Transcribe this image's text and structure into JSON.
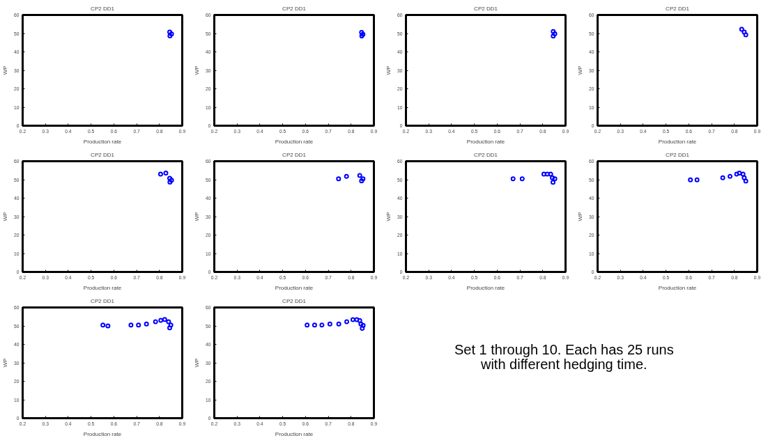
{
  "chart_data": [
    {
      "type": "scatter",
      "title": "CP2 DD1",
      "xlabel": "Production rate",
      "ylabel": "WP",
      "xlim": [
        0.2,
        0.9
      ],
      "ylim": [
        0,
        60
      ],
      "xticks": [
        0.2,
        0.3,
        0.4,
        0.5,
        0.6,
        0.7,
        0.8,
        0.9
      ],
      "yticks": [
        0,
        10,
        20,
        30,
        40,
        50,
        60
      ],
      "marker": "circle",
      "grid": false,
      "color": "#0000ff",
      "x": [
        0.845,
        0.853,
        0.846
      ],
      "values": [
        50.8,
        49.7,
        48.7
      ]
    },
    {
      "type": "scatter",
      "title": "CP2 DD1",
      "xlabel": "Production rate",
      "ylabel": "WP",
      "xlim": [
        0.2,
        0.9
      ],
      "ylim": [
        0,
        60
      ],
      "xticks": [
        0.2,
        0.3,
        0.4,
        0.5,
        0.6,
        0.7,
        0.8,
        0.9
      ],
      "yticks": [
        0,
        10,
        20,
        30,
        40,
        50,
        60
      ],
      "marker": "circle",
      "grid": false,
      "color": "#0000ff",
      "x": [
        0.846,
        0.852,
        0.847
      ],
      "values": [
        50.6,
        49.5,
        48.6
      ]
    },
    {
      "type": "scatter",
      "title": "CP2 DD1",
      "xlabel": "Production rate",
      "ylabel": "WP",
      "xlim": [
        0.2,
        0.9
      ],
      "ylim": [
        0,
        60
      ],
      "xticks": [
        0.2,
        0.3,
        0.4,
        0.5,
        0.6,
        0.7,
        0.8,
        0.9
      ],
      "yticks": [
        0,
        10,
        20,
        30,
        40,
        50,
        60
      ],
      "marker": "circle",
      "grid": false,
      "color": "#0000ff",
      "x": [
        0.846,
        0.853,
        0.846
      ],
      "values": [
        51,
        49.8,
        48.6
      ]
    },
    {
      "type": "scatter",
      "title": "CP2 DD1",
      "xlabel": "Production rate",
      "ylabel": "WP",
      "xlim": [
        0.2,
        0.9
      ],
      "ylim": [
        0,
        60
      ],
      "xticks": [
        0.2,
        0.3,
        0.4,
        0.5,
        0.6,
        0.7,
        0.8,
        0.9
      ],
      "yticks": [
        0,
        10,
        20,
        30,
        40,
        50,
        60
      ],
      "marker": "circle",
      "grid": false,
      "color": "#0000ff",
      "x": [
        0.832,
        0.843,
        0.85
      ],
      "values": [
        52.3,
        50.8,
        49.2
      ]
    },
    {
      "type": "scatter",
      "title": "CP2 DD1",
      "xlabel": "Production rate",
      "ylabel": "WP",
      "xlim": [
        0.2,
        0.9
      ],
      "ylim": [
        0,
        60
      ],
      "xticks": [
        0.2,
        0.3,
        0.4,
        0.5,
        0.6,
        0.7,
        0.8,
        0.9
      ],
      "yticks": [
        0,
        10,
        20,
        30,
        40,
        50,
        60
      ],
      "marker": "circle",
      "grid": false,
      "color": "#0000ff",
      "x": [
        0.805,
        0.828,
        0.845,
        0.853,
        0.846
      ],
      "values": [
        53,
        53.6,
        50.8,
        49.7,
        48.7
      ]
    },
    {
      "type": "scatter",
      "title": "CP2 DD1",
      "xlabel": "Production rate",
      "ylabel": "WP",
      "xlim": [
        0.2,
        0.9
      ],
      "ylim": [
        0,
        60
      ],
      "xticks": [
        0.2,
        0.3,
        0.4,
        0.5,
        0.6,
        0.7,
        0.8,
        0.9
      ],
      "yticks": [
        0,
        10,
        20,
        30,
        40,
        50,
        60
      ],
      "marker": "circle",
      "grid": false,
      "color": "#0000ff",
      "x": [
        0.745,
        0.78,
        0.838,
        0.852,
        0.846
      ],
      "values": [
        50.5,
        51.8,
        52.3,
        50.5,
        49.3
      ]
    },
    {
      "type": "scatter",
      "title": "CP2 DD1",
      "xlabel": "Production rate",
      "ylabel": "WP",
      "xlim": [
        0.2,
        0.9
      ],
      "ylim": [
        0,
        60
      ],
      "xticks": [
        0.2,
        0.3,
        0.4,
        0.5,
        0.6,
        0.7,
        0.8,
        0.9
      ],
      "yticks": [
        0,
        10,
        20,
        30,
        40,
        50,
        60
      ],
      "marker": "circle",
      "grid": false,
      "color": "#0000ff",
      "x": [
        0.67,
        0.71,
        0.805,
        0.82,
        0.835,
        0.842,
        0.853,
        0.845
      ],
      "values": [
        50.5,
        50.5,
        53,
        53,
        53,
        51,
        50.5,
        48.6
      ]
    },
    {
      "type": "scatter",
      "title": "CP2 DD1",
      "xlabel": "Production rate",
      "ylabel": "WP",
      "xlim": [
        0.2,
        0.9
      ],
      "ylim": [
        0,
        60
      ],
      "xticks": [
        0.2,
        0.3,
        0.4,
        0.5,
        0.6,
        0.7,
        0.8,
        0.9
      ],
      "yticks": [
        0,
        10,
        20,
        30,
        40,
        50,
        60
      ],
      "marker": "circle",
      "grid": false,
      "color": "#0000ff",
      "x": [
        0.607,
        0.636,
        0.749,
        0.781,
        0.81,
        0.822,
        0.838,
        0.843,
        0.85
      ],
      "values": [
        49.9,
        49.9,
        51,
        51.8,
        53,
        53.6,
        53,
        51,
        49.2
      ]
    },
    {
      "type": "scatter",
      "title": "CP2 DD1",
      "xlabel": "Production rate",
      "ylabel": "WP",
      "xlim": [
        0.2,
        0.9
      ],
      "ylim": [
        0,
        60
      ],
      "xticks": [
        0.2,
        0.3,
        0.4,
        0.5,
        0.6,
        0.7,
        0.8,
        0.9
      ],
      "yticks": [
        0,
        10,
        20,
        30,
        40,
        50,
        60
      ],
      "marker": "circle",
      "grid": false,
      "color": "#0000ff",
      "x": [
        0.552,
        0.574,
        0.675,
        0.708,
        0.743,
        0.783,
        0.806,
        0.823,
        0.84,
        0.85,
        0.845
      ],
      "values": [
        50.5,
        50,
        50.5,
        50.5,
        51,
        52.3,
        53,
        53.5,
        52.3,
        50.5,
        49
      ]
    },
    {
      "type": "scatter",
      "title": "CP2 DD1",
      "xlabel": "Production rate",
      "ylabel": "WP",
      "xlim": [
        0.2,
        0.9
      ],
      "ylim": [
        0,
        60
      ],
      "xticks": [
        0.2,
        0.3,
        0.4,
        0.5,
        0.6,
        0.7,
        0.8,
        0.9
      ],
      "yticks": [
        0,
        10,
        20,
        30,
        40,
        50,
        60
      ],
      "marker": "circle",
      "grid": false,
      "color": "#0000ff",
      "x": [
        0.607,
        0.64,
        0.672,
        0.707,
        0.746,
        0.781,
        0.808,
        0.825,
        0.838,
        0.843,
        0.853,
        0.849
      ],
      "values": [
        50.5,
        50.5,
        50.5,
        51,
        51,
        52.3,
        53.4,
        53.4,
        52.9,
        51,
        50.3,
        48.7
      ]
    },
    {
      "type": "other",
      "annotations": [
        "Set 1 through 10. Each has 25 runs",
        "with different hedging time."
      ]
    }
  ]
}
